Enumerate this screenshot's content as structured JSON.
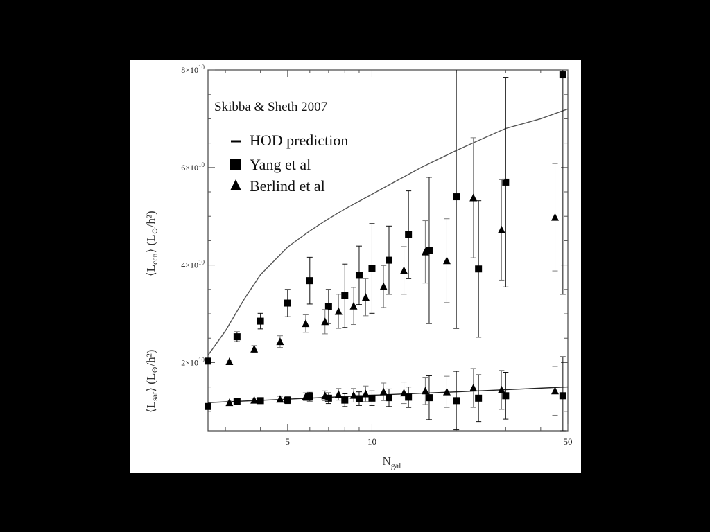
{
  "chart_data": {
    "type": "scatter",
    "title": "",
    "credit": "Skibba & Sheth 2007",
    "xlabel": {
      "main": "N",
      "sub": "gal"
    },
    "ylabel_upper": {
      "main": "L",
      "sub": "cen",
      "unit": "L",
      "unit_sub": "⊙",
      "unit_den": "h²"
    },
    "ylabel_lower": {
      "main": "L",
      "sub": "sat",
      "unit": "L",
      "unit_sub": "⊙",
      "unit_den": "h²"
    },
    "x_scale": "log",
    "xlim": [
      2.6,
      50
    ],
    "ylim": [
      6000000000,
      80000000000
    ],
    "x_ticks": [
      {
        "value": 5,
        "label": "5"
      },
      {
        "value": 10,
        "label": "10"
      },
      {
        "value": 50,
        "label": "50"
      }
    ],
    "y_ticks": [
      {
        "value": 20000000000,
        "mantissa": "2×10",
        "exponent": "10"
      },
      {
        "value": 40000000000,
        "mantissa": "4×10",
        "exponent": "10"
      },
      {
        "value": 60000000000,
        "mantissa": "6×10",
        "exponent": "10"
      },
      {
        "value": 80000000000,
        "mantissa": "8×10",
        "exponent": "10"
      }
    ],
    "legend": [
      {
        "marker": "line",
        "label": "HOD prediction"
      },
      {
        "marker": "square",
        "label": "Yang et al"
      },
      {
        "marker": "triangle",
        "label": "Berlind et al"
      }
    ],
    "hod_prediction": [
      {
        "name": "central",
        "x": [
          2.6,
          3.0,
          3.5,
          4.0,
          5.0,
          6.0,
          7.0,
          8.0,
          10.0,
          12.0,
          15.0,
          20.0,
          25.0,
          30.0,
          40.0,
          50.0
        ],
        "y": [
          21500000000,
          26500000000,
          33000000000,
          38000000000,
          43700000000,
          47000000000,
          49500000000,
          51500000000,
          54500000000,
          57000000000,
          60000000000,
          63500000000,
          66000000000,
          68000000000,
          70000000000,
          72000000000
        ]
      },
      {
        "name": "satellite",
        "x": [
          2.6,
          5.0,
          10.0,
          20.0,
          50.0
        ],
        "y": [
          11800000000,
          12500000000,
          13300000000,
          14000000000,
          15000000000
        ]
      }
    ],
    "series": [
      {
        "name": "Yang et al (central)",
        "marker": "square",
        "x": [
          2.6,
          3.3,
          4.0,
          5.0,
          6.0,
          7.0,
          8.0,
          9.0,
          10.0,
          11.5,
          13.5,
          16.0,
          20.0,
          24.0,
          30.0,
          48.0
        ],
        "y": [
          20300000000,
          25300000000,
          28500000000,
          32200000000,
          36800000000,
          31500000000,
          33700000000,
          37900000000,
          39300000000,
          41000000000,
          46200000000,
          43000000000,
          54000000000,
          39200000000,
          57000000000,
          79000000000
        ],
        "err": [
          500000000,
          1000000000,
          1600000000,
          2800000000,
          4800000000,
          3500000000,
          6500000000,
          6000000000,
          9200000000,
          7000000000,
          9000000000,
          15000000000,
          27000000000,
          14000000000,
          21500000000,
          45000000000
        ]
      },
      {
        "name": "Berlind et al (central)",
        "marker": "triangle",
        "x": [
          3.1,
          3.8,
          4.7,
          5.8,
          6.8,
          7.6,
          8.6,
          9.5,
          11.0,
          13.0,
          15.5,
          18.5,
          23.0,
          29.0,
          45.0
        ],
        "y": [
          20200000000,
          22800000000,
          24300000000,
          28000000000,
          28400000000,
          30500000000,
          31600000000,
          33400000000,
          35600000000,
          38900000000,
          42700000000,
          40900000000,
          53800000000,
          47200000000,
          49800000000
        ],
        "err": [
          300000000,
          700000000,
          1200000000,
          1800000000,
          2500000000,
          3500000000,
          3800000000,
          3800000000,
          4300000000,
          4900000000,
          6400000000,
          8600000000,
          12300000000,
          10300000000,
          11000000000
        ]
      },
      {
        "name": "Yang et al (satellite)",
        "marker": "square",
        "x": [
          2.6,
          3.3,
          4.0,
          5.0,
          6.0,
          7.0,
          8.0,
          9.0,
          10.0,
          11.5,
          13.5,
          16.0,
          20.0,
          24.0,
          30.0,
          48.0
        ],
        "y": [
          11000000000,
          12000000000,
          12200000000,
          12300000000,
          13000000000,
          12700000000,
          12300000000,
          12600000000,
          12700000000,
          12800000000,
          12900000000,
          12800000000,
          12200000000,
          12700000000,
          13200000000,
          13200000000
        ],
        "err": [
          300000000,
          400000000,
          500000000,
          700000000,
          900000000,
          1100000000,
          1300000000,
          1400000000,
          1500000000,
          1800000000,
          2100000000,
          4500000000,
          6000000000,
          4800000000,
          4800000000,
          8000000000
        ]
      },
      {
        "name": "Berlind et al (satellite)",
        "marker": "triangle",
        "x": [
          3.1,
          3.8,
          4.7,
          5.8,
          6.8,
          7.6,
          8.6,
          9.5,
          11.0,
          13.0,
          15.5,
          18.5,
          23.0,
          29.0,
          45.0
        ],
        "y": [
          11800000000,
          12300000000,
          12500000000,
          13000000000,
          13200000000,
          13500000000,
          13300000000,
          13600000000,
          14000000000,
          13800000000,
          14200000000,
          14000000000,
          14800000000,
          14400000000,
          14200000000
        ],
        "err": [
          300000000,
          400000000,
          600000000,
          800000000,
          1000000000,
          1200000000,
          1400000000,
          1600000000,
          1800000000,
          2200000000,
          2800000000,
          3200000000,
          4000000000,
          4000000000,
          5000000000
        ]
      }
    ]
  }
}
